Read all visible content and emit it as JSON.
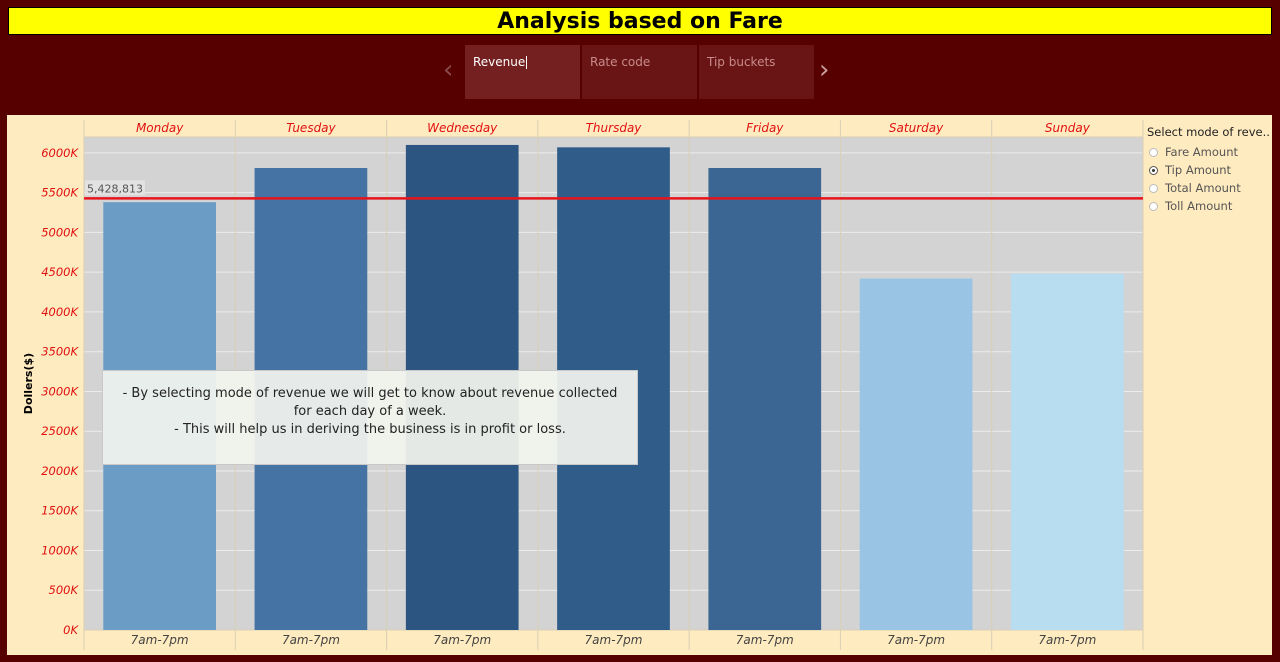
{
  "header": {
    "title": "Analysis based on Fare"
  },
  "story": {
    "tabs": [
      {
        "label": "Revenue",
        "active": true
      },
      {
        "label": "Rate code",
        "active": false
      },
      {
        "label": "Tip buckets",
        "active": false
      }
    ],
    "prev_icon": "chevron-left-icon",
    "next_icon": "chevron-right-icon"
  },
  "annotation": {
    "line1": "- By selecting mode of revenue we will get to know about revenue collected for each day of a week.",
    "line2": "- This will help us in deriving the business is in profit or loss."
  },
  "legend": {
    "title": "Select mode of reve..",
    "options": [
      {
        "label": "Fare Amount",
        "selected": false
      },
      {
        "label": "Tip Amount",
        "selected": true
      },
      {
        "label": "Total Amount",
        "selected": false
      },
      {
        "label": "Toll Amount",
        "selected": false
      }
    ]
  },
  "colors": {
    "background": "#560000",
    "title_bar": "#ffff00",
    "panel": "#ffebc0",
    "plot_area": "#d3d3d3",
    "reference_line": "#e8141c",
    "labels": "#e01010"
  },
  "chart_data": {
    "type": "bar",
    "categories": [
      "Monday",
      "Tuesday",
      "Wednesday",
      "Thursday",
      "Friday",
      "Saturday",
      "Sunday"
    ],
    "sub_categories": [
      "7am-7pm",
      "7am-7pm",
      "7am-7pm",
      "7am-7pm",
      "7am-7pm",
      "7am-7pm",
      "7am-7pm"
    ],
    "values": [
      5380000,
      5810000,
      6100000,
      6070000,
      5810000,
      4420000,
      4480000
    ],
    "bar_colors": [
      "#6a9cc6",
      "#4574a4",
      "#2c5581",
      "#2f5c89",
      "#3b6694",
      "#99c4e4",
      "#b8dcf0"
    ],
    "ylabel": "Dollers($)",
    "xlabel": "",
    "ylim": [
      0,
      6200000
    ],
    "y_ticks": [
      0,
      500000,
      1000000,
      1500000,
      2000000,
      2500000,
      3000000,
      3500000,
      4000000,
      4500000,
      5000000,
      5500000,
      6000000
    ],
    "y_tick_labels": [
      "0K",
      "500K",
      "1000K",
      "1500K",
      "2000K",
      "2500K",
      "3000K",
      "3500K",
      "4000K",
      "4500K",
      "5000K",
      "5500K",
      "6000K"
    ],
    "reference_line": {
      "value": 5428813,
      "label": "5,428,813"
    },
    "grid": true
  }
}
